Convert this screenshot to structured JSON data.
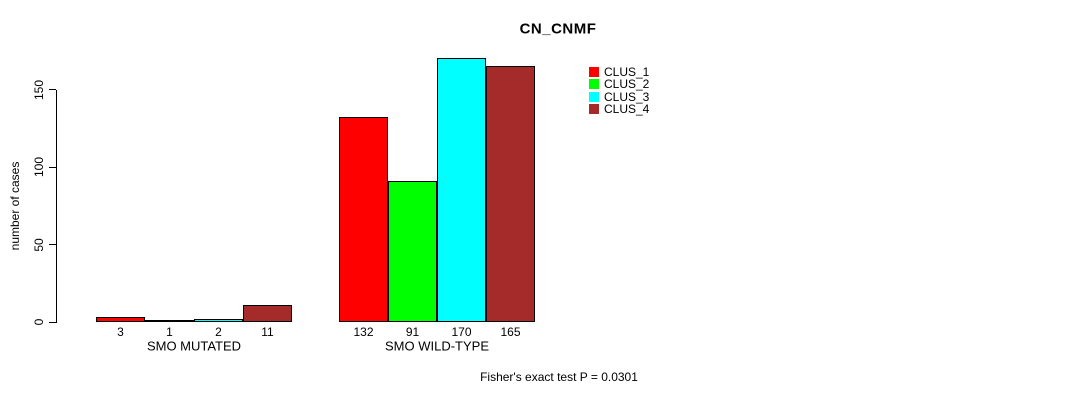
{
  "chart_data": {
    "type": "bar",
    "title": "CN_CNMF",
    "ylabel": "number of cases",
    "xlabel": "",
    "categories": [
      "SMO MUTATED",
      "SMO WILD-TYPE"
    ],
    "series": [
      {
        "name": "CLUS_1",
        "color": "#ff0000",
        "values": [
          3,
          132
        ]
      },
      {
        "name": "CLUS_2",
        "color": "#00ff00",
        "values": [
          1,
          91
        ]
      },
      {
        "name": "CLUS_3",
        "color": "#00ffff",
        "values": [
          2,
          170
        ]
      },
      {
        "name": "CLUS_4",
        "color": "#a52a2a",
        "values": [
          11,
          165
        ]
      }
    ],
    "yticks": [
      0,
      50,
      100,
      150
    ],
    "ylim": [
      0,
      173
    ],
    "grid": false,
    "bar_borders": true,
    "show_value_labels": true,
    "legend_position": "top-right",
    "annotation": "Fisher's exact test P = 0.0301"
  }
}
